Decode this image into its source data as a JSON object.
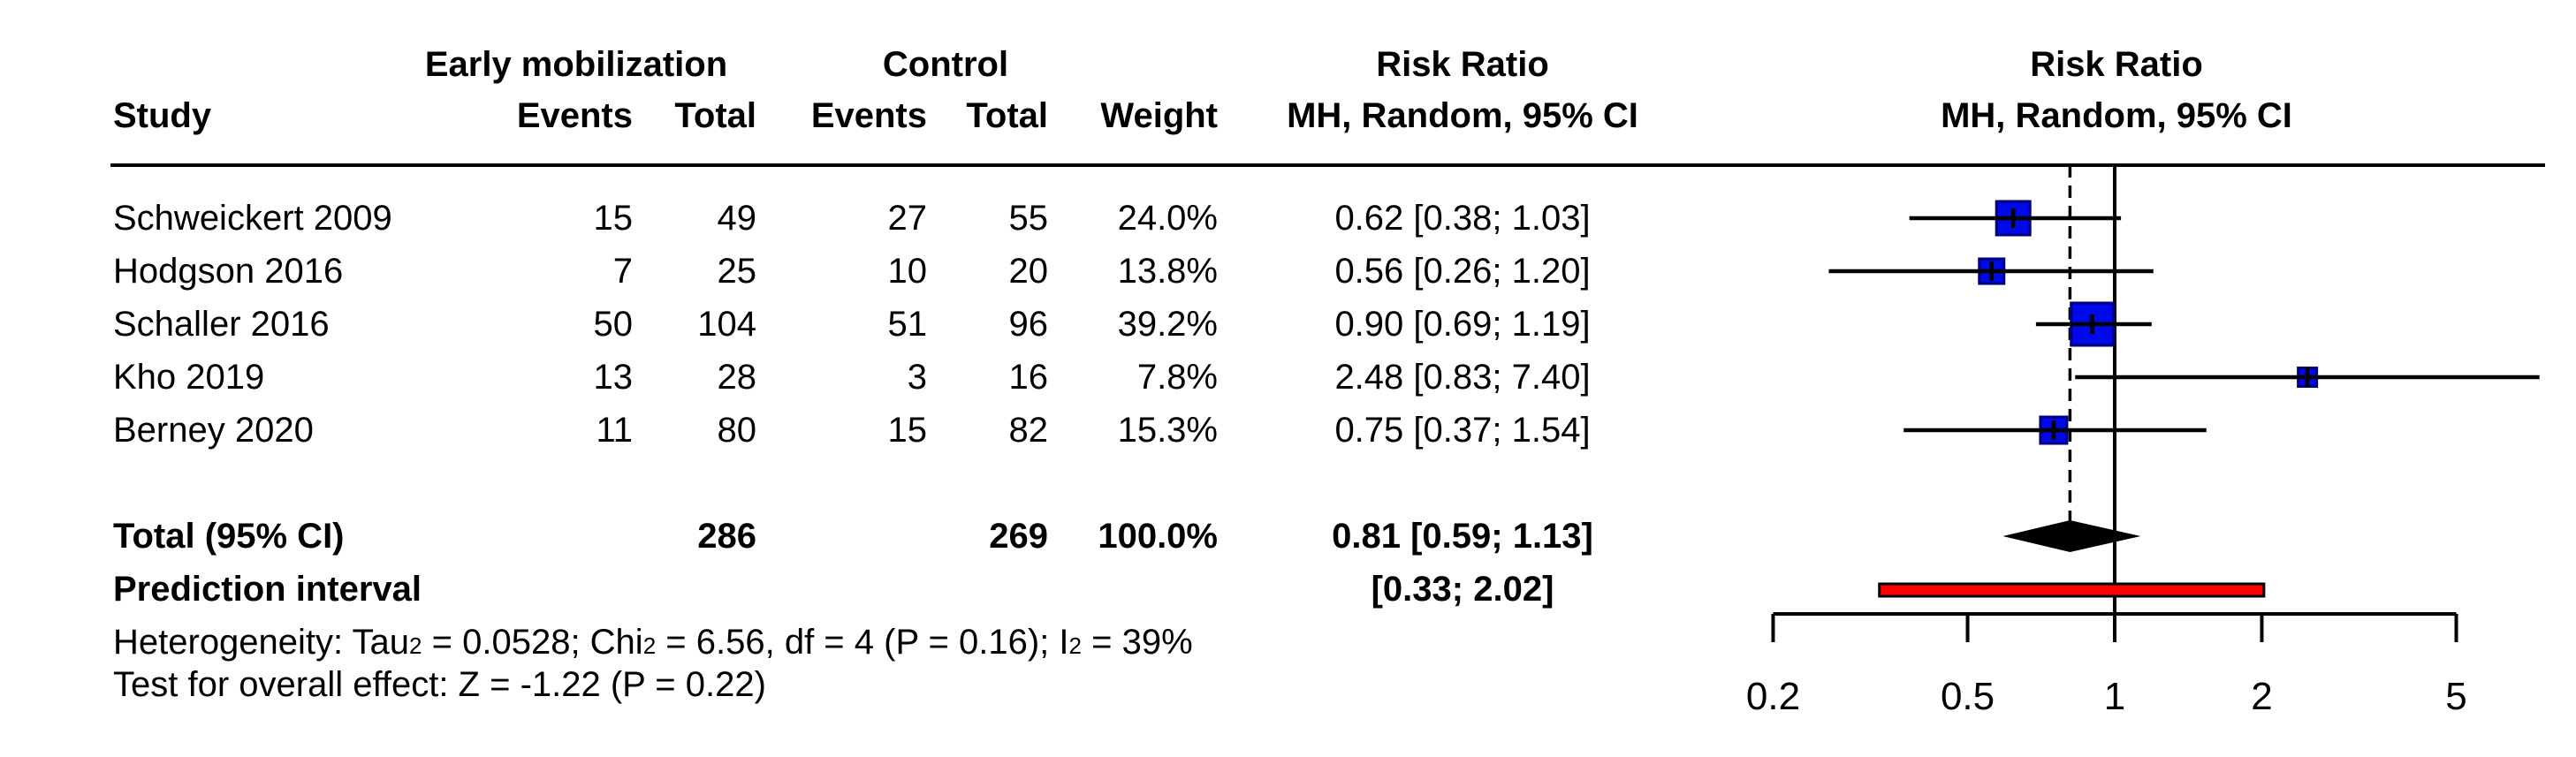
{
  "header": {
    "study": "Study",
    "group_exp": "Early mobilization",
    "group_ctrl": "Control",
    "events": "Events",
    "total": "Total",
    "weight": "Weight",
    "rr_line1": "Risk Ratio",
    "rr_line2": "MH, Random, 95% CI"
  },
  "total_row": {
    "label": "Total (95% CI)",
    "total_exp": "286",
    "total_ctrl": "269",
    "weight": "100.0%",
    "ci_text": "0.81 [0.59; 1.13]"
  },
  "prediction_row": {
    "label": "Prediction interval",
    "ci_text": "[0.33; 2.02]"
  },
  "footnotes": {
    "heterogeneity_segments": [
      {
        "text": "Heterogeneity: Tau"
      },
      {
        "sup": "2"
      },
      {
        "text": " = 0.0528; Chi"
      },
      {
        "sup": "2"
      },
      {
        "text": " = 6.56, df = 4 (P = 0.16); I"
      },
      {
        "sup": "2"
      },
      {
        "text": " = 39%"
      }
    ],
    "overall_effect": "Test for overall effect: Z = -1.22 (P = 0.22)"
  },
  "chart_data": {
    "type": "forest",
    "scale": "log",
    "effect_measure": "Risk Ratio",
    "model": "MH, Random, 95% CI",
    "axis_ticks": [
      0.2,
      0.5,
      1,
      2,
      5
    ],
    "axis_tick_labels": [
      "0.2",
      "0.5",
      "1",
      "2",
      "5"
    ],
    "null_line": 1,
    "studies": [
      {
        "name": "Schweickert 2009",
        "events_exp": 15,
        "total_exp": 49,
        "events_ctrl": 27,
        "total_ctrl": 55,
        "weight": "24.0%",
        "weight_pct": 24.0,
        "rr": 0.62,
        "low": 0.38,
        "high": 1.03,
        "ci_text": "0.62 [0.38; 1.03]"
      },
      {
        "name": "Hodgson 2016",
        "events_exp": 7,
        "total_exp": 25,
        "events_ctrl": 10,
        "total_ctrl": 20,
        "weight": "13.8%",
        "weight_pct": 13.8,
        "rr": 0.56,
        "low": 0.26,
        "high": 1.2,
        "ci_text": "0.56 [0.26; 1.20]"
      },
      {
        "name": "Schaller 2016",
        "events_exp": 50,
        "total_exp": 104,
        "events_ctrl": 51,
        "total_ctrl": 96,
        "weight": "39.2%",
        "weight_pct": 39.2,
        "rr": 0.9,
        "low": 0.69,
        "high": 1.19,
        "ci_text": "0.90 [0.69; 1.19]"
      },
      {
        "name": "Kho 2019",
        "events_exp": 13,
        "total_exp": 28,
        "events_ctrl": 3,
        "total_ctrl": 16,
        "weight": "7.8%",
        "weight_pct": 7.8,
        "rr": 2.48,
        "low": 0.83,
        "high": 7.4,
        "ci_text": "2.48 [0.83; 7.40]"
      },
      {
        "name": "Berney 2020",
        "events_exp": 11,
        "total_exp": 80,
        "events_ctrl": 15,
        "total_ctrl": 82,
        "weight": "15.3%",
        "weight_pct": 15.3,
        "rr": 0.75,
        "low": 0.37,
        "high": 1.54,
        "ci_text": "0.75 [0.37; 1.54]"
      }
    ],
    "pooled": {
      "rr": 0.81,
      "low": 0.59,
      "high": 1.13
    },
    "prediction": {
      "low": 0.33,
      "high": 2.02
    },
    "colors": {
      "square_fill": "#0009E8",
      "square_border": "#000080",
      "diamond": "#000000",
      "prediction_fill": "#FF0000",
      "line": "#000000"
    }
  }
}
